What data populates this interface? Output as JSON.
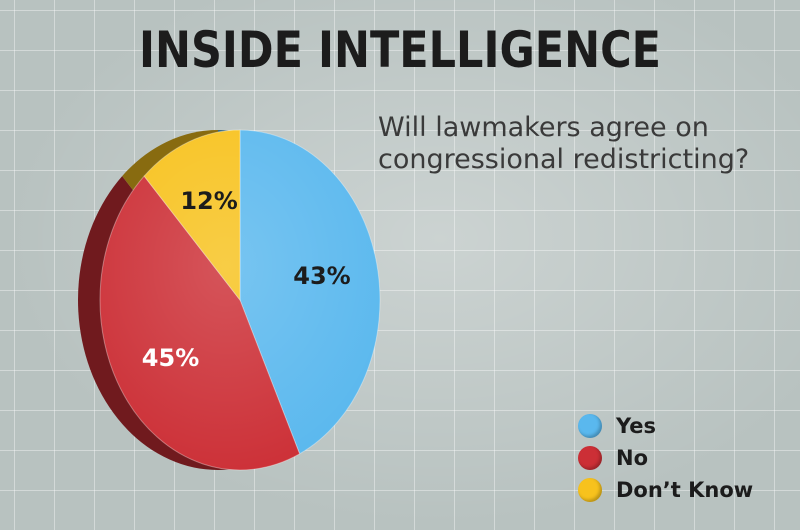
{
  "title": "INSIDE INTELLIGENCE",
  "question": {
    "line1": "Will lawmakers agree on",
    "line2": "congressional redistricting?"
  },
  "chart_data": {
    "type": "pie",
    "title": "Will lawmakers agree on congressional redistricting?",
    "categories": [
      "Yes",
      "No",
      "Don’t Know"
    ],
    "values": [
      43,
      45,
      12
    ],
    "labels": [
      "43%",
      "45%",
      "12%"
    ],
    "colors": [
      "#5ab8ee",
      "#cc2f36",
      "#f7c21d"
    ],
    "label_colors": [
      "#1c1c1c",
      "#ffffff",
      "#1c1c1c"
    ],
    "start": "top, clockwise",
    "legend_position": "bottom-right"
  }
}
